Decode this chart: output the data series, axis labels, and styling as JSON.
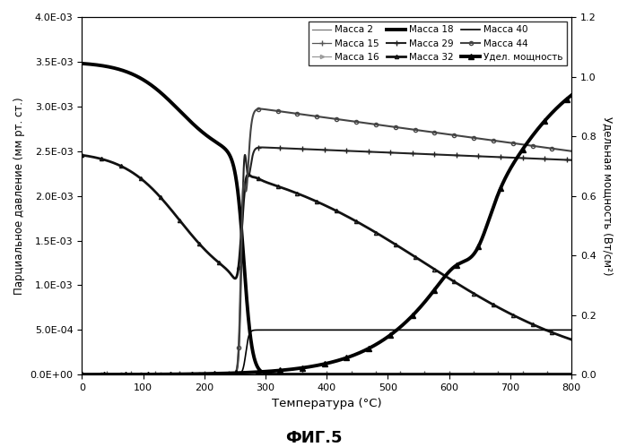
{
  "title": "ФИГ.5",
  "xlabel": "Температура (°C)",
  "ylabel_left": "Парциальное давление (мм рт. ст.)",
  "ylabel_right": "Удельная мощность (Вт/см²)",
  "xlim": [
    0,
    800
  ],
  "ylim_left": [
    0,
    0.004
  ],
  "ylim_right": [
    0,
    1.2
  ],
  "yticks_left": [
    0.0,
    0.0005,
    0.001,
    0.0015,
    0.002,
    0.0025,
    0.003,
    0.0035,
    0.004
  ],
  "ytick_labels_left": [
    "0.0E+00",
    "5.0E-04",
    "1.0E-03",
    "1.5E-03",
    "2.0E-03",
    "2.5E-03",
    "3.0E-03",
    "3.5E-03",
    "4.0E-03"
  ],
  "yticks_right": [
    0,
    0.2,
    0.4,
    0.6,
    0.8,
    1.0,
    1.2
  ],
  "xticks": [
    0,
    100,
    200,
    300,
    400,
    500,
    600,
    700,
    800
  ],
  "background_color": "#ffffff"
}
